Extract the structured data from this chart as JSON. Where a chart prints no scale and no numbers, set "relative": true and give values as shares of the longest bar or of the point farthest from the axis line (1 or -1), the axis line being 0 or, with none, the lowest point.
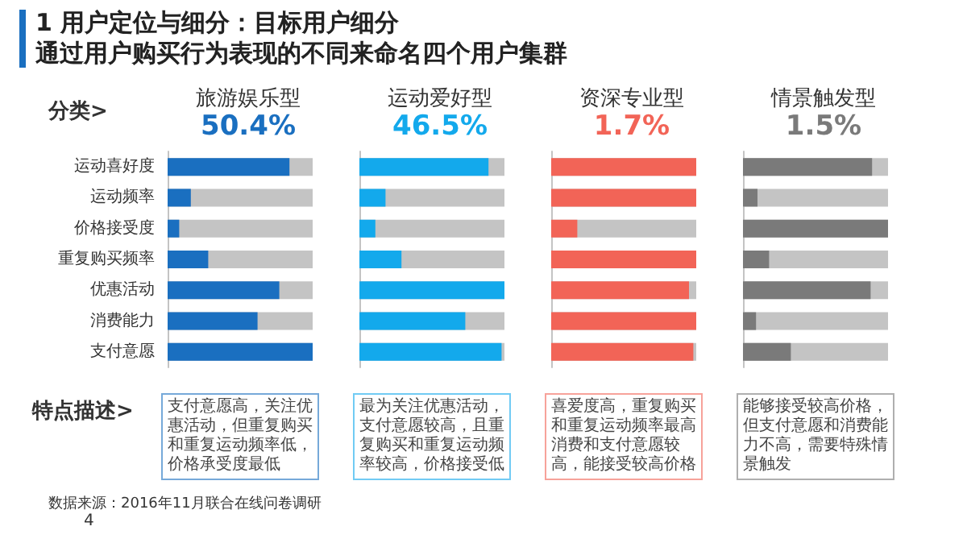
{
  "chart_data": [
    {
      "type": "other",
      "title": "1 用户定位与细分：目标用户细分",
      "subtitle": "通过用户购买行为表现的不同来命名四个用户集群",
      "annotations": [
        "分类>",
        "特点描述>",
        "数据来源：2016年11月联合在线问卷调研",
        "4"
      ]
    },
    {
      "type": "bar",
      "orientation": "horizontal",
      "relative": true,
      "tick_labels": "y",
      "title": "旅游娱乐型",
      "subtitle": "50.4%",
      "categories": [
        "运动喜好度",
        "运动频率",
        "价格接受度",
        "重复购买频率",
        "优惠活动",
        "消费能力",
        "支付意愿"
      ],
      "series": [
        {
          "color": "#1a6fc0",
          "values": [
            0.84,
            0.16,
            0.08,
            0.28,
            0.77,
            0.62,
            1.0
          ]
        }
      ],
      "annotations": [
        "支付意愿高，关注优惠活动，但重复购买和重复运动频率低，价格承受度最低"
      ]
    },
    {
      "type": "bar",
      "orientation": "horizontal",
      "relative": true,
      "tick_labels": false,
      "title": "运动爱好型",
      "subtitle": "46.5%",
      "categories": [
        null,
        null,
        null,
        null,
        null,
        null,
        null
      ],
      "series": [
        {
          "color": "#13a9ec",
          "values": [
            0.89,
            0.18,
            0.11,
            0.29,
            1.0,
            0.73,
            0.98
          ]
        }
      ],
      "annotations": [
        "最为关注优惠活动，支付意愿较高，且重复购买和重复运动频率较高，价格接受低"
      ]
    },
    {
      "type": "bar",
      "orientation": "horizontal",
      "relative": true,
      "tick_labels": false,
      "title": "资深专业型",
      "subtitle": "1.7%",
      "categories": [
        null,
        null,
        null,
        null,
        null,
        null,
        null
      ],
      "series": [
        {
          "color": "#f26457",
          "values": [
            1.0,
            1.0,
            0.18,
            1.0,
            0.95,
            1.0,
            0.98
          ]
        }
      ],
      "annotations": [
        "喜爱度高，重复购买和重复运动频率最高消费和支付意愿较高，能接受较高价格"
      ]
    },
    {
      "type": "bar",
      "orientation": "horizontal",
      "relative": true,
      "tick_labels": false,
      "title": "情景触发型",
      "subtitle": "1.5%",
      "categories": [
        null,
        null,
        null,
        null,
        null,
        null,
        null
      ],
      "series": [
        {
          "color": "#7a7a7a",
          "values": [
            0.89,
            0.1,
            1.0,
            0.18,
            0.88,
            0.09,
            0.33
          ]
        }
      ],
      "annotations": [
        "能够接受较高价格，但支付意愿和消费能力不高，需要特殊情景触发"
      ]
    }
  ]
}
